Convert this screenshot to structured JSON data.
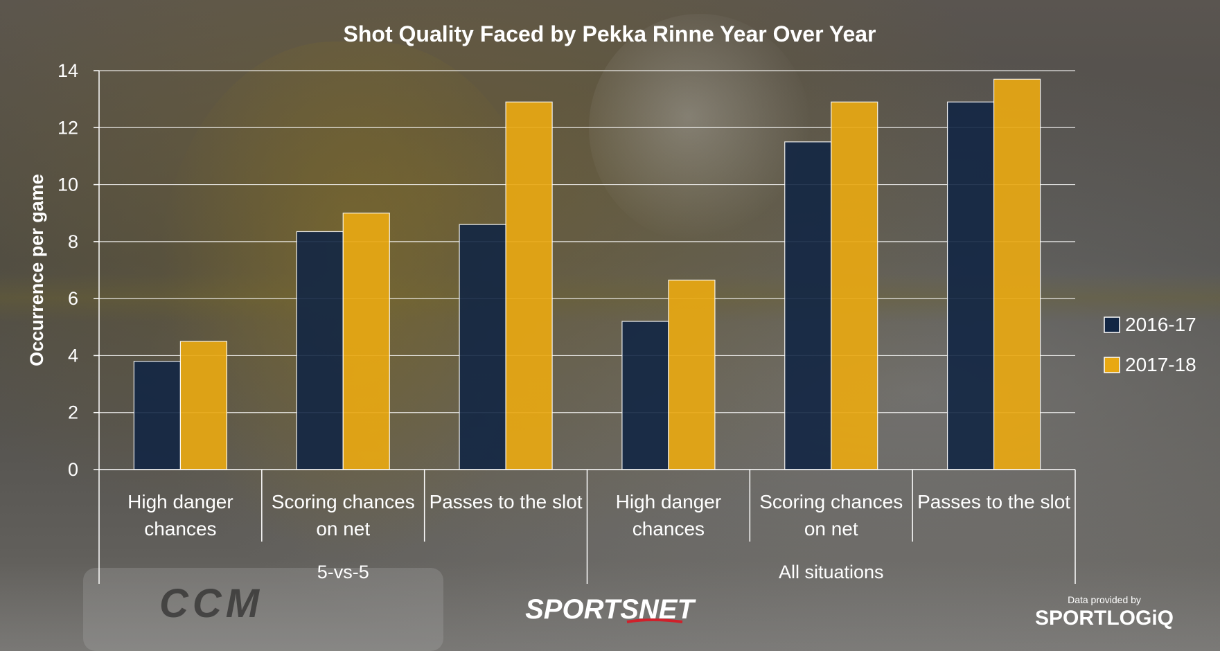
{
  "chart_data": {
    "type": "bar",
    "title": "Shot Quality Faced by Pekka Rinne Year Over Year",
    "ylabel": "Occurrence per game",
    "xlabel": "",
    "ylim": [
      0,
      14
    ],
    "yticks": [
      0,
      2,
      4,
      6,
      8,
      10,
      12,
      14
    ],
    "grid": true,
    "legend_position": "right",
    "categories": [
      [
        "High danger",
        "chances"
      ],
      [
        "Scoring chances",
        "on net"
      ],
      [
        "Passes to the slot"
      ],
      [
        "High danger",
        "chances"
      ],
      [
        "Scoring chances",
        "on net"
      ],
      [
        "Passes to the slot"
      ]
    ],
    "groups": [
      {
        "label": "5-vs-5",
        "span": 3
      },
      {
        "label": "All situations",
        "span": 3
      }
    ],
    "series": [
      {
        "name": "2016-17",
        "color": "#122644",
        "values": [
          3.8,
          8.35,
          8.6,
          5.2,
          11.5,
          12.9
        ]
      },
      {
        "name": "2017-18",
        "color": "#E8A812",
        "values": [
          4.5,
          9.0,
          12.9,
          6.65,
          12.9,
          13.7
        ]
      }
    ]
  },
  "branding": {
    "sportsnet": "SPORTSNET",
    "data_provided_by": "Data provided by",
    "sportlogiq": "SPORTLOGiQ"
  },
  "background": {
    "pad_brand": "CCM"
  }
}
